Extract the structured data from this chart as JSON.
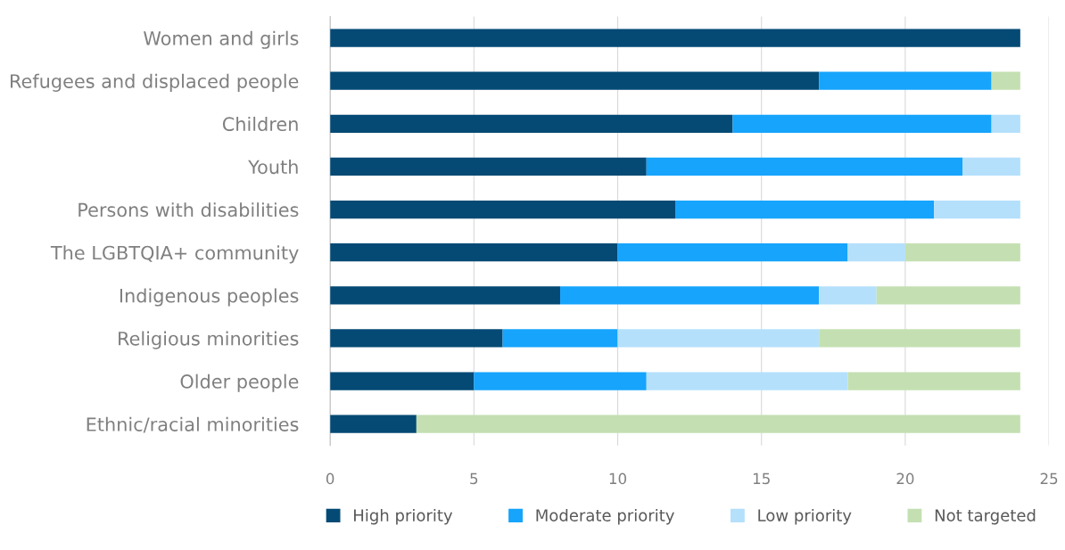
{
  "chart_data": {
    "type": "bar",
    "orientation": "horizontal",
    "stacked": true,
    "categories": [
      "Women and girls",
      "Refugees and displaced people",
      "Children",
      "Youth",
      "Persons with disabilities",
      "The LGBTQIA+ community",
      "Indigenous peoples",
      "Religious minorities",
      "Older people",
      "Ethnic/racial minorities"
    ],
    "series": [
      {
        "name": "High priority",
        "color": "#044a75",
        "values": [
          24,
          17,
          14,
          11,
          12,
          10,
          8,
          6,
          5,
          3
        ]
      },
      {
        "name": "Moderate priority",
        "color": "#16a4fc",
        "values": [
          0,
          6,
          9,
          11,
          9,
          8,
          9,
          4,
          6,
          0
        ]
      },
      {
        "name": "Low priority",
        "color": "#b4e0fc",
        "values": [
          0,
          0,
          1,
          2,
          3,
          2,
          2,
          7,
          7,
          0
        ]
      },
      {
        "name": "Not targeted",
        "color": "#c4e0b2",
        "values": [
          0,
          1,
          0,
          0,
          0,
          4,
          5,
          7,
          6,
          21
        ]
      }
    ],
    "xlim": [
      0,
      25
    ],
    "xticks": [
      0,
      5,
      10,
      15,
      20,
      25
    ],
    "grid": "x",
    "legend": "bottom"
  }
}
